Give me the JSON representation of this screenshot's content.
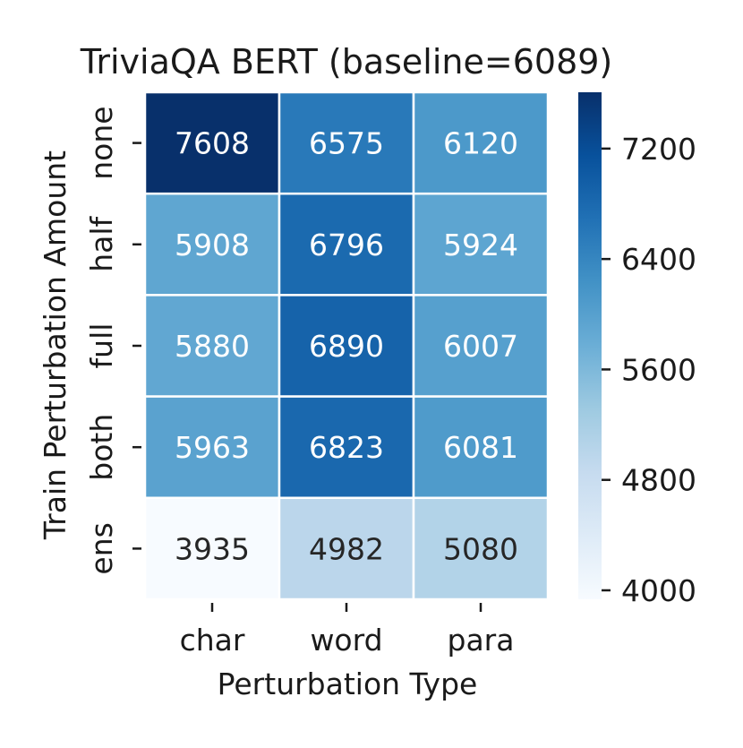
{
  "chart_data": {
    "type": "heatmap",
    "title": "TriviaQA BERT (baseline=6089)",
    "xlabel": "Perturbation Type",
    "ylabel": "Train Perturbation Amount",
    "x_categories": [
      "char",
      "word",
      "para"
    ],
    "y_categories": [
      "none",
      "half",
      "full",
      "both",
      "ens"
    ],
    "values": [
      [
        7608,
        6575,
        6120
      ],
      [
        5908,
        6796,
        5924
      ],
      [
        5880,
        6890,
        6007
      ],
      [
        5963,
        6823,
        6081
      ],
      [
        3935,
        4982,
        5080
      ]
    ],
    "colorbar": {
      "range": [
        3935,
        7608
      ],
      "ticks": [
        4000,
        4800,
        5600,
        6400,
        7200
      ],
      "colormap": "Blues",
      "low_color": "#f7fbff",
      "high_color": "#08306b"
    }
  }
}
